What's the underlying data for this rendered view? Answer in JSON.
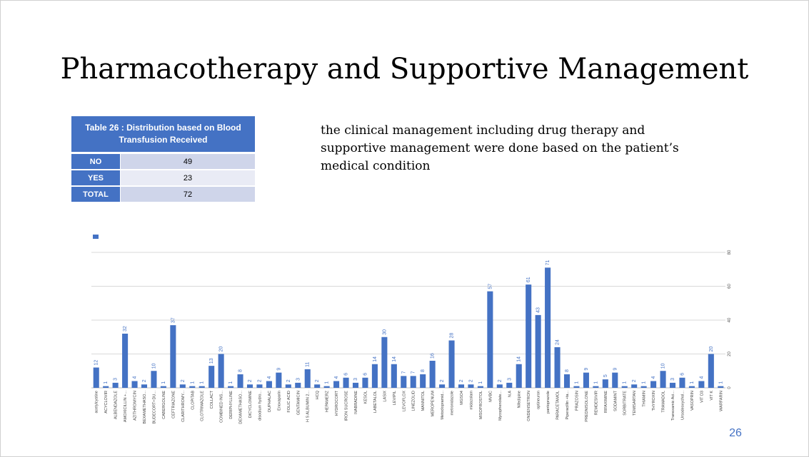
{
  "slide": {
    "title": "Pharmacotherapy and Supportive Management",
    "description": "the clinical management including drug therapy and supportive management were done based on the patient’s medical condition",
    "page_number": "26",
    "accent_color": "#4472c4"
  },
  "table": {
    "title": "Table 26 : Distribution based on Blood Transfusion Received",
    "rows": [
      {
        "label": "NO",
        "value": "49"
      },
      {
        "label": "YES",
        "value": "23"
      },
      {
        "label": "TOTAL",
        "value": "72"
      }
    ]
  },
  "chart_data": {
    "type": "bar",
    "title": "",
    "xlabel": "",
    "ylabel": "",
    "ylim": [
      0,
      80
    ],
    "yticks": [
      0,
      20,
      40,
      60,
      80
    ],
    "grid": true,
    "legend": "top-left",
    "color": "#4472c4",
    "categories": [
      "acetylcystine",
      "ACYCLOVIR",
      "ALBENDAZOLE",
      "AMOXICILLIN +...",
      "AZITHROMYCIN",
      "BEXAMETHASO...",
      "BUDECORT+DU...",
      "CABERGOLINE",
      "CEFTRIAZONE",
      "CLARITHROMY...",
      "CLOPITAB",
      "CLOTRIMAZOLE",
      "COLLACT",
      "COMBINED INS...",
      "DERIPHYLLINE",
      "DEXAMETHASO...",
      "DICYCLOMINE",
      "disodium hydro...",
      "DUPHALAC",
      "Enoxaparin",
      "FOLIC ACID",
      "GENTAMICIN",
      "H S ALBUMIN 2...",
      "HCQ",
      "HEPAMERZ",
      "HYDROCORT",
      "IRON SUCROSE",
      "IVABRADINE",
      "KESOL",
      "LABETALOL",
      "LASIX",
      "LEVIPIL",
      "LEVOFLOX",
      "LINEZOLID",
      "MANNITOL",
      "MEROPENUM",
      "Metoclopramid...",
      "metronidazole",
      "MGSO4",
      "midazolam",
      "MISOPROSTOL",
      "MVBC",
      "Mycophenolate...",
      "N.A",
      "Nifedipine",
      "ONDENSETRON",
      "optineuron",
      "pantoprazole",
      "PARACETAMOL",
      "Piperacillin +ta...",
      "PRAZOSIN",
      "PREDNISOLONE",
      "REMDESIVIR",
      "RIFAXIMINE",
      "SODAMINT",
      "SORBITRATE",
      "TEMISARTAN",
      "THIAMIN",
      "THYROXIN",
      "TRAMADOL",
      "Tranexamic Aci...",
      "Ursodeoxychol...",
      "VASOPRIN",
      "VIT D3",
      "VIT K",
      "WARFARIN"
    ],
    "values": [
      12,
      1,
      3,
      32,
      4,
      2,
      10,
      1,
      37,
      2,
      1,
      1,
      13,
      20,
      1,
      8,
      2,
      2,
      4,
      9,
      2,
      3,
      11,
      2,
      1,
      4,
      6,
      3,
      6,
      14,
      30,
      14,
      7,
      7,
      8,
      16,
      2,
      28,
      2,
      2,
      1,
      57,
      2,
      3,
      14,
      61,
      43,
      71,
      24,
      8,
      1,
      9,
      1,
      5,
      9,
      1,
      2,
      1,
      4,
      10,
      3,
      6,
      1,
      4,
      20,
      1
    ]
  }
}
